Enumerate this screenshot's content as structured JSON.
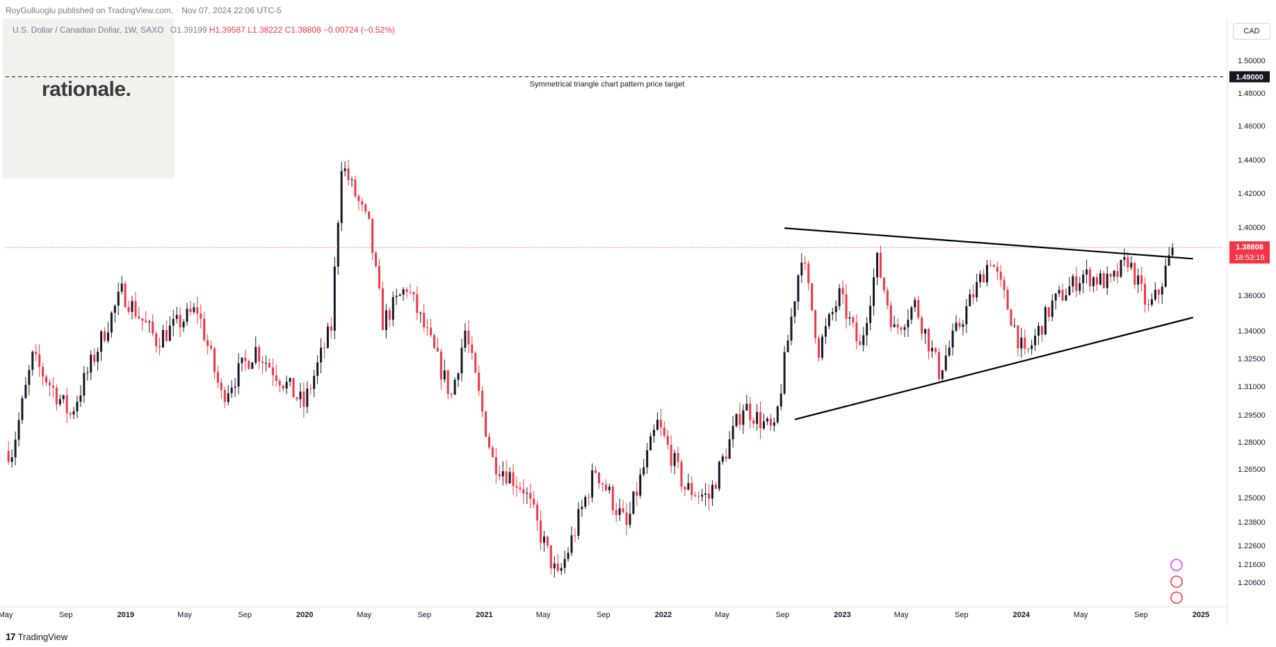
{
  "header": {
    "publisher": "RoyGulluoglu published on TradingView.com,",
    "published_at": "Nov 07, 2024 22:06 UTC-5"
  },
  "brand": {
    "wordmark": "rationale."
  },
  "symbol": {
    "title": "U.S. Dollar / Canadian Dollar, 1W, SAXO",
    "open": "O1.39199",
    "high": "H1.39587",
    "low": "L1.38222",
    "close": "C1.38808",
    "change": "−0.00724 (−0.52%)"
  },
  "price_axis": {
    "currency": "CAD"
  },
  "footer": {
    "logo_text": "TradingView"
  },
  "colors": {
    "up": "#131722",
    "down": "#f23645",
    "current_price": "#f23645",
    "target_line": "#131722"
  },
  "chart_data": {
    "type": "candlestick",
    "title": "U.S. Dollar / Canadian Dollar, 1W, SAXO",
    "timeframe": "1W",
    "x_ticks": [
      "May",
      "Sep",
      "2019",
      "May",
      "Sep",
      "2020",
      "May",
      "Sep",
      "2021",
      "May",
      "Sep",
      "2022",
      "May",
      "Sep",
      "2023",
      "May",
      "Sep",
      "2024",
      "May",
      "Sep",
      "2025"
    ],
    "y_ticks": [
      "1.50000",
      "1.48000",
      "1.46000",
      "1.44000",
      "1.42000",
      "1.40000",
      "1.36000",
      "1.34000",
      "1.32500",
      "1.31000",
      "1.29500",
      "1.28000",
      "1.26500",
      "1.25000",
      "1.23800",
      "1.22600",
      "1.21600",
      "1.20600"
    ],
    "ylim": [
      1.2,
      1.51
    ],
    "grid": false,
    "current_price": {
      "label": "1.38808",
      "value": 1.38808,
      "countdown": "18:53:19"
    },
    "price_target": {
      "label": "1.49000",
      "value": 1.49,
      "annotation": "Symmetrical triangle chart pattern price target"
    },
    "trendlines": [
      {
        "name": "upper",
        "from": {
          "date": "2022-09-05",
          "price": 1.3995
        },
        "to": {
          "date": "2024-12-16",
          "price": 1.3815
        }
      },
      {
        "name": "lower",
        "from": {
          "date": "2022-09-26",
          "price": 1.2925
        },
        "to": {
          "date": "2024-12-16",
          "price": 1.3475
        }
      }
    ],
    "anchors": [
      [
        "2018-05-14",
        1.275
      ],
      [
        "2018-06-25",
        1.325
      ],
      [
        "2018-09-10",
        1.295
      ],
      [
        "2018-12-24",
        1.362
      ],
      [
        "2019-03-04",
        1.335
      ],
      [
        "2019-05-27",
        1.352
      ],
      [
        "2019-07-15",
        1.305
      ],
      [
        "2019-09-23",
        1.33
      ],
      [
        "2019-12-30",
        1.3
      ],
      [
        "2020-02-24",
        1.342
      ],
      [
        "2020-03-16",
        1.438
      ],
      [
        "2020-05-11",
        1.4
      ],
      [
        "2020-06-08",
        1.345
      ],
      [
        "2020-07-27",
        1.365
      ],
      [
        "2020-10-26",
        1.305
      ],
      [
        "2020-11-23",
        1.34
      ],
      [
        "2021-01-18",
        1.27
      ],
      [
        "2021-03-22",
        1.255
      ],
      [
        "2021-05-31",
        1.208
      ],
      [
        "2021-08-16",
        1.265
      ],
      [
        "2021-10-18",
        1.235
      ],
      [
        "2021-12-20",
        1.29
      ],
      [
        "2022-02-14",
        1.255
      ],
      [
        "2022-04-04",
        1.25
      ],
      [
        "2022-06-13",
        1.3
      ],
      [
        "2022-08-15",
        1.285
      ],
      [
        "2022-10-10",
        1.385
      ],
      [
        "2022-11-14",
        1.33
      ],
      [
        "2022-12-26",
        1.36
      ],
      [
        "2023-02-06",
        1.33
      ],
      [
        "2023-03-13",
        1.38
      ],
      [
        "2023-04-17",
        1.34
      ],
      [
        "2023-05-29",
        1.355
      ],
      [
        "2023-07-17",
        1.318
      ],
      [
        "2023-10-30",
        1.382
      ],
      [
        "2024-01-08",
        1.325
      ],
      [
        "2024-03-04",
        1.355
      ],
      [
        "2024-05-06",
        1.372
      ],
      [
        "2024-07-01",
        1.367
      ],
      [
        "2024-08-05",
        1.381
      ],
      [
        "2024-09-16",
        1.352
      ],
      [
        "2024-10-07",
        1.362
      ],
      [
        "2024-11-04",
        1.388
      ]
    ]
  }
}
